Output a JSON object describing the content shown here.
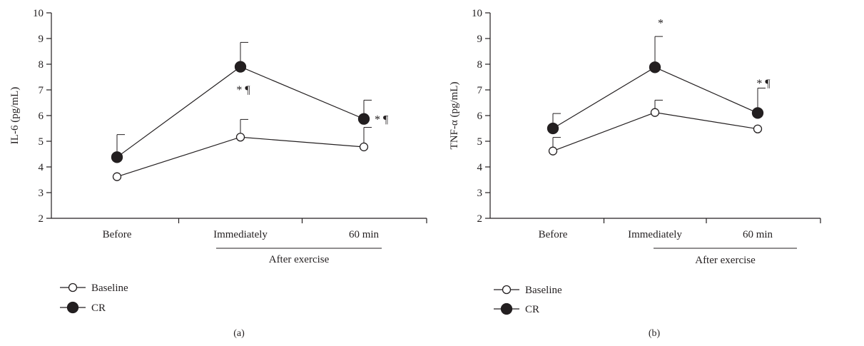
{
  "panels": [
    {
      "panel_label": "(a)",
      "ylabel": "IL-6 (pg/mL)",
      "group_label": "After exercise"
    },
    {
      "panel_label": "(b)",
      "ylabel": "TNF-α (pg/mL)",
      "group_label": "After exercise"
    }
  ],
  "chart_data": [
    {
      "type": "line",
      "categories": [
        "Before",
        "Immediately",
        "60 min"
      ],
      "ylabel": "IL-6 (pg/mL)",
      "ylim": [
        2,
        10
      ],
      "yticks": [
        2,
        3,
        4,
        5,
        6,
        7,
        8,
        9,
        10
      ],
      "grid": false,
      "legend": "bottom-left",
      "series": [
        {
          "name": "Baseline",
          "marker": "open-circle",
          "color": "#231f20",
          "values": [
            3.62,
            5.16,
            4.78
          ],
          "error_up": [
            null,
            0.69,
            0.76
          ]
        },
        {
          "name": "CR",
          "marker": "filled-circle",
          "color": "#231f20",
          "values": [
            4.38,
            7.9,
            5.87
          ],
          "error_up": [
            0.88,
            0.95,
            0.73
          ]
        }
      ],
      "annotations": [
        {
          "text": "* ¶",
          "category": "Immediately",
          "y": 7.0
        },
        {
          "text": "* ¶",
          "category": "60 min",
          "y": 5.87
        }
      ]
    },
    {
      "type": "line",
      "categories": [
        "Before",
        "Immediately",
        "60 min"
      ],
      "ylabel": "TNF-α (pg/mL)",
      "ylim": [
        2,
        10
      ],
      "yticks": [
        2,
        3,
        4,
        5,
        6,
        7,
        8,
        9,
        10
      ],
      "grid": false,
      "legend": "bottom-left",
      "series": [
        {
          "name": "Baseline",
          "marker": "open-circle",
          "color": "#231f20",
          "values": [
            4.62,
            6.12,
            5.48
          ],
          "error_up": [
            0.53,
            0.48,
            null
          ]
        },
        {
          "name": "CR",
          "marker": "filled-circle",
          "color": "#231f20",
          "values": [
            5.5,
            7.88,
            6.1
          ],
          "error_up": [
            0.58,
            1.2,
            0.97
          ]
        }
      ],
      "annotations": [
        {
          "text": "*",
          "category": "Immediately",
          "y": 9.6
        },
        {
          "text": "* ¶",
          "category": "60 min",
          "y": 7.25
        }
      ]
    }
  ]
}
